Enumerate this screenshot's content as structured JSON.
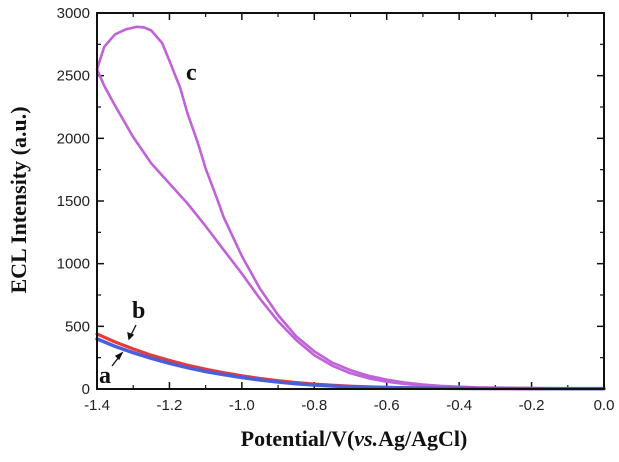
{
  "chart_data": {
    "type": "line",
    "xlabel_main": "Potential/V(",
    "xlabel_italic": "vs.",
    "xlabel_tail": "Ag/AgCl)",
    "ylabel": "ECL Intensity (a.u.)",
    "xlim": [
      -1.4,
      0.0
    ],
    "ylim": [
      0,
      3000
    ],
    "x_ticks": [
      -1.4,
      -1.2,
      -1.0,
      -0.8,
      -0.6,
      -0.4,
      -0.2,
      0.0
    ],
    "x_tick_labels": [
      "-1.4",
      "-1.2",
      "-1.0",
      "-0.8",
      "-0.6",
      "-0.4",
      "-0.2",
      "0.0"
    ],
    "y_ticks": [
      0,
      500,
      1000,
      1500,
      2000,
      2500,
      3000
    ],
    "y_tick_labels": [
      "0",
      "500",
      "1000",
      "1500",
      "2000",
      "2500",
      "3000"
    ],
    "grid": false,
    "legend": "none",
    "series": [
      {
        "name": "a",
        "color": "#4a5fd8",
        "x": [
          -1.4,
          -1.35,
          -1.3,
          -1.25,
          -1.2,
          -1.15,
          -1.1,
          -1.05,
          -1.0,
          -0.95,
          -0.9,
          -0.85,
          -0.8,
          -0.75,
          -0.7,
          -0.65,
          -0.6,
          -0.55,
          -0.5,
          -0.45,
          -0.4,
          -0.3,
          -0.2,
          -0.1,
          0.0
        ],
        "y": [
          400,
          340,
          290,
          245,
          205,
          170,
          140,
          115,
          92,
          72,
          56,
          42,
          32,
          24,
          18,
          14,
          11,
          9,
          7,
          6,
          5,
          4,
          3,
          3,
          3
        ]
      },
      {
        "name": "b",
        "color": "#e83a3a",
        "x": [
          -1.4,
          -1.35,
          -1.3,
          -1.25,
          -1.2,
          -1.15,
          -1.1,
          -1.05,
          -1.0,
          -0.95,
          -0.9,
          -0.85,
          -0.8,
          -0.75,
          -0.7,
          -0.65,
          -0.6,
          -0.55,
          -0.5,
          -0.45,
          -0.4,
          -0.3,
          -0.2,
          -0.1,
          0.0
        ],
        "y": [
          440,
          375,
          320,
          270,
          228,
          190,
          158,
          130,
          105,
          84,
          66,
          51,
          39,
          30,
          22,
          17,
          13,
          10,
          8,
          6,
          5,
          4,
          3,
          3,
          3
        ]
      },
      {
        "name": "c",
        "color": "#c063d8",
        "x": [
          -1.4,
          -1.38,
          -1.35,
          -1.32,
          -1.29,
          -1.27,
          -1.25,
          -1.22,
          -1.2,
          -1.17,
          -1.15,
          -1.12,
          -1.1,
          -1.07,
          -1.05,
          -1.0,
          -0.95,
          -0.9,
          -0.85,
          -0.8,
          -0.75,
          -0.7,
          -0.65,
          -0.6,
          -0.55,
          -0.5,
          -0.45,
          -0.4,
          -0.35,
          -0.3,
          -0.2,
          -0.1,
          0.0,
          -0.1,
          -0.2,
          -0.3,
          -0.35,
          -0.4,
          -0.45,
          -0.5,
          -0.55,
          -0.6,
          -0.65,
          -0.7,
          -0.75,
          -0.8,
          -0.85,
          -0.9,
          -0.95,
          -1.0,
          -1.05,
          -1.1,
          -1.15,
          -1.2,
          -1.25,
          -1.3,
          -1.35,
          -1.38,
          -1.4
        ],
        "y": [
          2550,
          2730,
          2830,
          2870,
          2890,
          2885,
          2860,
          2760,
          2620,
          2400,
          2200,
          1950,
          1760,
          1530,
          1370,
          1060,
          800,
          590,
          420,
          300,
          210,
          150,
          105,
          75,
          52,
          36,
          25,
          18,
          13,
          10,
          7,
          5,
          4,
          4,
          5,
          8,
          10,
          14,
          20,
          28,
          40,
          58,
          85,
          125,
          185,
          270,
          390,
          540,
          720,
          920,
          1110,
          1300,
          1480,
          1640,
          1800,
          2010,
          2260,
          2420,
          2550
        ]
      }
    ],
    "annotations": [
      {
        "text": "a",
        "series": "a"
      },
      {
        "text": "b",
        "series": "b"
      },
      {
        "text": "c",
        "series": "c"
      }
    ]
  }
}
